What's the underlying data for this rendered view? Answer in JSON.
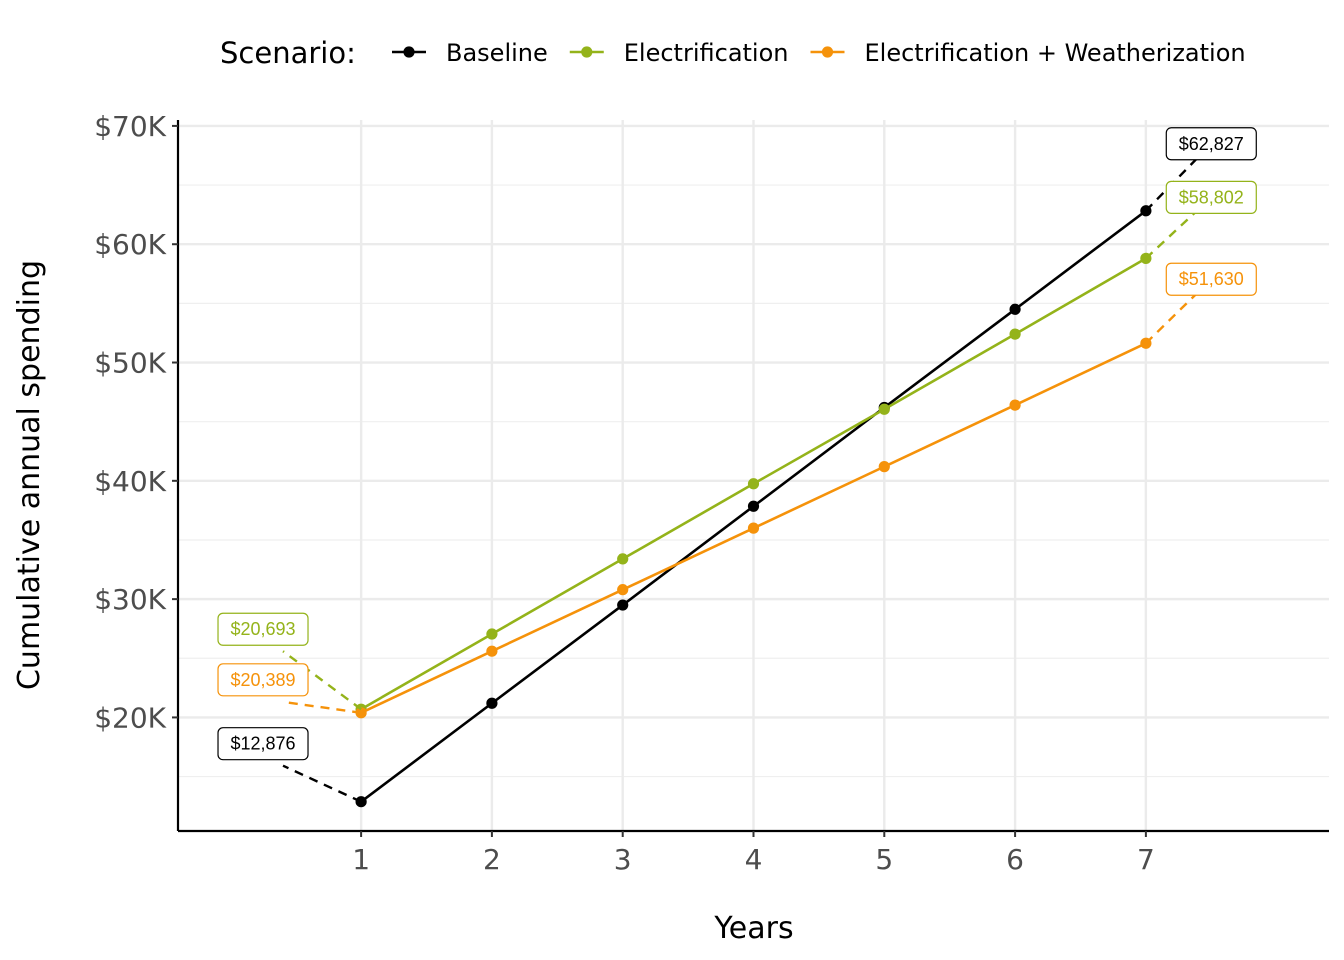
{
  "chart_data": {
    "type": "line",
    "xlabel": "Years",
    "ylabel": "Cumulative annual spending",
    "x": [
      1,
      2,
      3,
      4,
      5,
      6,
      7
    ],
    "xlim": [
      -0.4,
      8.4
    ],
    "ylim": [
      10400,
      70500
    ],
    "x_ticks": [
      1,
      2,
      3,
      4,
      5,
      6,
      7
    ],
    "y_ticks": [
      20000,
      30000,
      40000,
      50000,
      60000,
      70000
    ],
    "y_tick_labels": [
      "$20K",
      "$30K",
      "$40K",
      "$50K",
      "$60K",
      "$70K"
    ],
    "grid": true,
    "legend": {
      "title": "Scenario:",
      "position": "top"
    },
    "series": [
      {
        "name": "Baseline",
        "color": "#000000",
        "values": [
          12876,
          21200,
          29500,
          37850,
          46200,
          54500,
          62827
        ],
        "first_label": "$12,876",
        "last_label": "$62,827"
      },
      {
        "name": "Electrification",
        "color": "#94b31a",
        "values": [
          20693,
          27050,
          33400,
          39750,
          46050,
          52400,
          58802
        ],
        "first_label": "$20,693",
        "last_label": "$58,802"
      },
      {
        "name": "Electrification + Weatherization",
        "color": "#f5920a",
        "values": [
          20389,
          25600,
          30800,
          36000,
          41200,
          46400,
          51630
        ],
        "first_label": "$20,389",
        "last_label": "$51,630"
      }
    ]
  }
}
